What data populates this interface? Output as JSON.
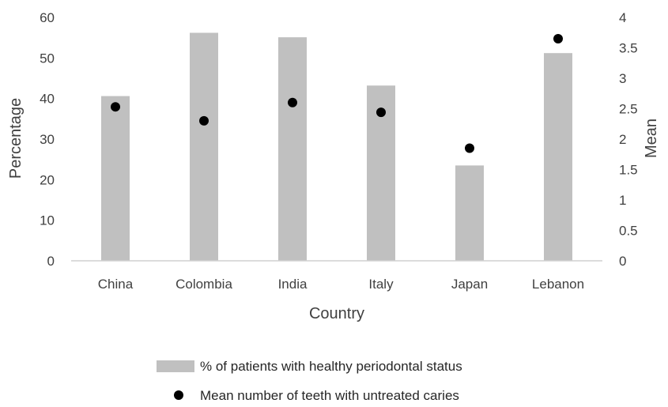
{
  "chart_data": {
    "type": "bar",
    "categories": [
      "China",
      "Colombia",
      "India",
      "Italy",
      "Japan",
      "Lebanon"
    ],
    "series": [
      {
        "name": "% of patients with healthy periodontal status",
        "type": "bar",
        "axis": "left",
        "values": [
          40.6,
          56.2,
          55.1,
          43.2,
          23.5,
          51.2
        ],
        "color": "#c0c0c0"
      },
      {
        "name": "Mean number of teeth with untreated caries",
        "type": "scatter",
        "axis": "right",
        "values": [
          2.53,
          2.3,
          2.6,
          2.44,
          1.85,
          3.65
        ],
        "color": "#000000"
      }
    ],
    "xlabel": "Country",
    "ylabel": "Percentage",
    "y2label": "Mean",
    "ylim": [
      0,
      60
    ],
    "y2lim": [
      0,
      4
    ],
    "yticks": [
      "0",
      "10",
      "20",
      "30",
      "40",
      "50",
      "60"
    ],
    "y2ticks": [
      "0",
      "0.5",
      "1",
      "1.5",
      "2",
      "2.5",
      "3",
      "3.5",
      "4"
    ],
    "grid": false,
    "legend_position": "bottom"
  }
}
